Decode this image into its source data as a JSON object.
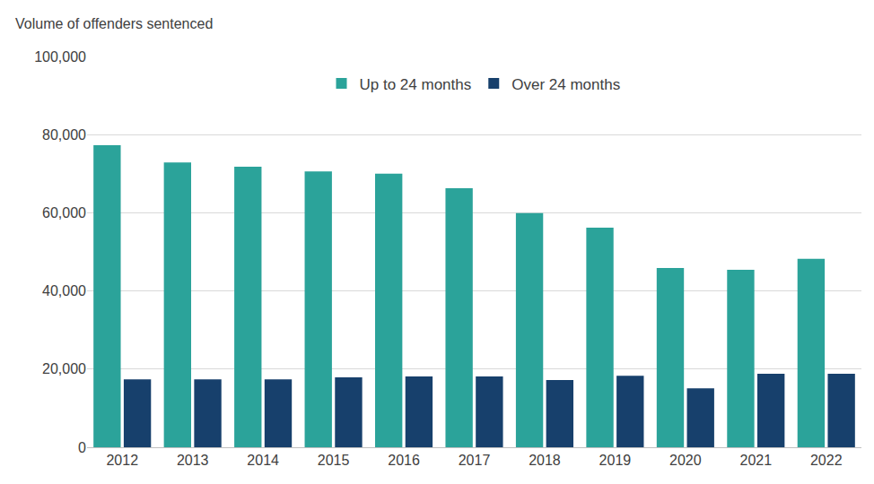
{
  "chart_data": {
    "type": "bar",
    "y_label": "Volume of offenders sentenced",
    "categories": [
      "2012",
      "2013",
      "2014",
      "2015",
      "2016",
      "2017",
      "2018",
      "2019",
      "2020",
      "2021",
      "2022"
    ],
    "series": [
      {
        "name": "Up to 24 months",
        "color": "#2ba39a",
        "values": [
          77300,
          72900,
          71800,
          70600,
          70000,
          66300,
          59900,
          56200,
          45900,
          45400,
          48200
        ]
      },
      {
        "name": "Over 24 months",
        "color": "#17406c",
        "values": [
          17400,
          17400,
          17400,
          17900,
          18100,
          18100,
          17200,
          18300,
          15100,
          18800,
          18800
        ]
      }
    ],
    "ylim": [
      0,
      100000
    ],
    "yticks": [
      0,
      {
        "value": 20000,
        "label": "20,000"
      },
      {
        "value": 40000,
        "label": "40,000"
      },
      {
        "value": 60000,
        "label": "60,000"
      },
      {
        "value": 80000,
        "label": "80,000"
      },
      {
        "value": 100000,
        "label": "100,000"
      }
    ],
    "grid": true,
    "legend": "top"
  }
}
